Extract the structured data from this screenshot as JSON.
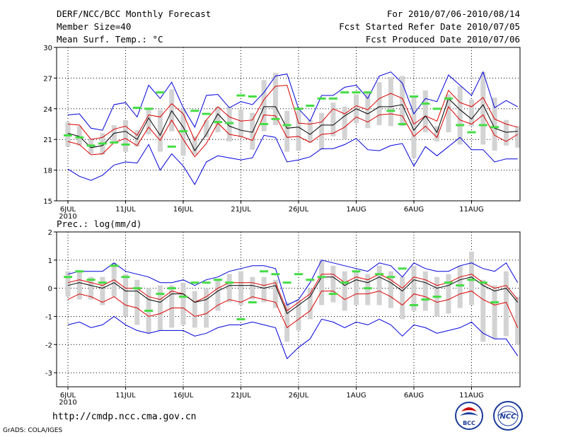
{
  "header": {
    "title": "DERF/NCC/BCC Monthly Forecast",
    "member_size": "Member Size=40",
    "variable": "Mean Surf. Temp.: °C",
    "forecast_period": "For 2010/07/06-2010/08/14",
    "started_date": "Fcst Started Refer Date 2010/07/05",
    "produced_date": "Fcst Produced Date 2010/07/06"
  },
  "footer": {
    "url": "http://cmdp.ncc.cma.gov.cn",
    "grads": "GrADS: COLA/IGES",
    "logo_bcc_text": "BCC",
    "logo_ncc_text": "NCC"
  },
  "colors": {
    "spread_bar": "#d3d3d3",
    "ensemble_max_min": "#0000dd",
    "std_band": "#dd0000",
    "ensemble_mean": "#000000",
    "observed_marker": "#44dd44",
    "grid": "#000000"
  },
  "chart_data": [
    {
      "type": "line",
      "title": "Mean Surf. Temp.: °C",
      "x_tick_labels": [
        "6JUL",
        "11JUL",
        "16JUL",
        "21JUL",
        "26JUL",
        "1AUG",
        "6AUG",
        "11AUG"
      ],
      "x_tick_sublabel": "2010",
      "y_ticks": [
        15,
        18,
        21,
        24,
        27,
        30
      ],
      "ylim": [
        15,
        30
      ],
      "days": 40,
      "series": [
        {
          "name": "ensemble max",
          "values": [
            23.4,
            23.5,
            22.1,
            21.9,
            24.4,
            24.6,
            23.2,
            26.3,
            25.0,
            26.6,
            24.1,
            22.2,
            25.3,
            25.4,
            24.1,
            24.7,
            24.4,
            25.6,
            27.2,
            27.4,
            24.0,
            22.8,
            25.3,
            25.3,
            26.1,
            26.3,
            25.0,
            27.2,
            27.6,
            26.5,
            23.5,
            25.0,
            24.7,
            27.3,
            26.3,
            25.3,
            27.6,
            24.1,
            24.8,
            24.2
          ]
        },
        {
          "name": "std upper",
          "values": [
            22.5,
            22.4,
            21.0,
            21.2,
            22.0,
            22.3,
            21.4,
            23.4,
            23.2,
            24.5,
            23.5,
            20.9,
            22.9,
            24.2,
            23.2,
            22.8,
            22.9,
            24.9,
            26.2,
            26.3,
            22.6,
            22.5,
            22.7,
            24.0,
            23.5,
            24.3,
            23.9,
            25.0,
            25.5,
            25.0,
            22.5,
            23.3,
            22.8,
            25.8,
            24.6,
            24.2,
            25.1,
            23.0,
            22.5,
            22.2
          ]
        },
        {
          "name": "ensemble mean",
          "values": [
            21.6,
            21.3,
            20.2,
            20.4,
            21.6,
            21.8,
            21.0,
            23.1,
            21.4,
            23.8,
            22.2,
            19.9,
            21.5,
            23.5,
            22.3,
            21.9,
            21.7,
            24.2,
            24.2,
            22.1,
            22.2,
            21.5,
            22.4,
            22.4,
            23.3,
            24.0,
            23.5,
            24.2,
            24.2,
            24.4,
            21.9,
            23.3,
            21.7,
            25.0,
            23.9,
            23.0,
            24.4,
            22.1,
            21.7,
            21.8
          ]
        },
        {
          "name": "std lower",
          "values": [
            20.8,
            20.5,
            19.5,
            19.6,
            20.7,
            21.1,
            20.4,
            22.2,
            20.9,
            22.9,
            21.0,
            19.3,
            20.6,
            22.6,
            21.5,
            21.3,
            20.9,
            23.4,
            23.3,
            21.2,
            21.3,
            20.7,
            21.5,
            21.6,
            22.2,
            23.2,
            22.7,
            23.4,
            23.5,
            23.3,
            21.3,
            22.3,
            21.2,
            24.2,
            22.9,
            22.5,
            23.4,
            21.4,
            20.8,
            21.5
          ]
        },
        {
          "name": "ensemble min",
          "values": [
            18.1,
            17.4,
            17.0,
            17.5,
            18.5,
            18.8,
            18.7,
            20.5,
            18.0,
            19.6,
            18.4,
            16.6,
            18.8,
            19.4,
            19.2,
            19.0,
            19.2,
            21.4,
            21.2,
            18.8,
            19.0,
            19.3,
            20.1,
            20.1,
            20.5,
            21.1,
            20.0,
            19.9,
            20.4,
            20.6,
            18.4,
            20.3,
            19.4,
            20.3,
            21.2,
            20.0,
            20.0,
            18.8,
            19.1,
            19.1
          ]
        },
        {
          "name": "spread bar top",
          "values": [
            22.7,
            22.3,
            21.1,
            21.6,
            22.4,
            22.9,
            21.9,
            24.0,
            23.9,
            25.9,
            24.0,
            21.3,
            22.9,
            24.2,
            24.2,
            23.9,
            23.6,
            26.8,
            27.5,
            23.8,
            23.8,
            22.9,
            23.6,
            24.6,
            24.2,
            25.4,
            25.5,
            26.6,
            27.1,
            27.2,
            25.2,
            25.8,
            22.3,
            25.4,
            26.2,
            24.9,
            27.6,
            25.1,
            22.9,
            22.3
          ]
        },
        {
          "name": "spread bar bottom",
          "values": [
            20.3,
            20.4,
            19.6,
            19.5,
            20.7,
            19.8,
            20.3,
            21.5,
            19.8,
            21.8,
            19.4,
            19.5,
            21.2,
            21.7,
            20.8,
            21.2,
            20.0,
            21.8,
            22.4,
            19.8,
            19.9,
            20.7,
            20.0,
            21.3,
            21.0,
            22.6,
            22.1,
            22.4,
            22.3,
            22.3,
            19.2,
            21.7,
            20.8,
            21.7,
            20.5,
            22.3,
            20.5,
            19.9,
            20.4,
            20.2
          ]
        },
        {
          "name": "observed",
          "values": [
            21.4,
            21.2,
            20.4,
            20.6,
            20.7,
            20.5,
            24.1,
            24.0,
            25.6,
            20.3,
            21.8,
            23.8,
            23.5,
            22.7,
            22.6,
            25.3,
            25.2,
            22.5,
            23.0,
            22.4,
            24.0,
            24.3,
            25.0,
            25.0,
            25.6,
            25.6,
            25.6,
            null,
            23.8,
            22.5,
            25.2,
            24.5,
            24.0,
            25.0,
            22.4,
            21.7,
            22.4,
            22.2,
            null,
            null
          ]
        }
      ]
    },
    {
      "type": "line",
      "title": "Prec.: log(mm/d)",
      "x_tick_labels": [
        "6JUL",
        "11JUL",
        "16JUL",
        "21JUL",
        "26JUL",
        "1AUG",
        "6AUG",
        "11AUG"
      ],
      "x_tick_sublabel": "2010",
      "y_ticks": [
        -3,
        -2,
        -1,
        0,
        1,
        2
      ],
      "ylim": [
        -3.5,
        2
      ],
      "days": 40,
      "series": [
        {
          "name": "ensemble max",
          "values": [
            0.5,
            0.6,
            0.6,
            0.6,
            0.9,
            0.6,
            0.5,
            0.4,
            0.2,
            0.2,
            0.3,
            0.1,
            0.3,
            0.4,
            0.6,
            0.7,
            0.8,
            0.8,
            0.7,
            -0.6,
            -0.4,
            0.2,
            1.0,
            0.9,
            0.8,
            0.7,
            0.6,
            0.9,
            0.8,
            0.4,
            0.9,
            0.7,
            0.6,
            0.6,
            0.8,
            0.9,
            0.7,
            0.6,
            0.9,
            0.2
          ]
        },
        {
          "name": "std upper",
          "values": [
            0.2,
            0.3,
            0.2,
            0.1,
            0.3,
            0.0,
            0.0,
            -0.3,
            -0.4,
            -0.1,
            -0.2,
            -0.5,
            -0.3,
            0.0,
            0.2,
            0.2,
            0.2,
            0.1,
            0.2,
            -0.8,
            -0.5,
            -0.2,
            0.5,
            0.5,
            0.2,
            0.4,
            0.3,
            0.5,
            0.3,
            0.0,
            0.4,
            0.3,
            0.1,
            0.2,
            0.4,
            0.5,
            0.2,
            0.0,
            0.1,
            -0.4
          ]
        },
        {
          "name": "ensemble mean",
          "values": [
            0.1,
            0.2,
            0.1,
            0.0,
            0.2,
            -0.1,
            -0.1,
            -0.4,
            -0.5,
            -0.2,
            -0.2,
            -0.5,
            -0.4,
            -0.1,
            0.1,
            0.1,
            0.1,
            0.0,
            0.1,
            -0.9,
            -0.6,
            -0.3,
            0.4,
            0.4,
            0.1,
            0.3,
            0.2,
            0.4,
            0.2,
            -0.1,
            0.3,
            0.2,
            0.0,
            0.1,
            0.3,
            0.4,
            0.1,
            -0.1,
            0.0,
            -0.5
          ]
        },
        {
          "name": "std lower",
          "values": [
            -0.4,
            -0.2,
            -0.3,
            -0.5,
            -0.3,
            -0.6,
            -0.7,
            -1.0,
            -0.9,
            -0.7,
            -0.7,
            -1.0,
            -0.9,
            -0.6,
            -0.4,
            -0.5,
            -0.3,
            -0.4,
            -0.5,
            -1.4,
            -1.1,
            -0.8,
            -0.1,
            -0.1,
            -0.4,
            -0.2,
            -0.2,
            -0.1,
            -0.3,
            -0.6,
            -0.2,
            -0.3,
            -0.5,
            -0.4,
            -0.2,
            -0.1,
            -0.4,
            -0.6,
            -0.5,
            -1.4
          ]
        },
        {
          "name": "ensemble min",
          "values": [
            -1.3,
            -1.2,
            -1.4,
            -1.3,
            -1.0,
            -1.3,
            -1.5,
            -1.6,
            -1.5,
            -1.5,
            -1.5,
            -1.7,
            -1.6,
            -1.4,
            -1.3,
            -1.3,
            -1.2,
            -1.3,
            -1.4,
            -2.5,
            -2.1,
            -1.8,
            -1.1,
            -1.2,
            -1.4,
            -1.2,
            -1.3,
            -1.1,
            -1.3,
            -1.7,
            -1.3,
            -1.4,
            -1.6,
            -1.5,
            -1.4,
            -1.2,
            -1.6,
            -1.8,
            -1.8,
            -2.4
          ]
        },
        {
          "name": "spread bar top",
          "values": [
            0.6,
            0.6,
            0.4,
            0.4,
            0.9,
            0.5,
            0.3,
            0.0,
            0.1,
            0.1,
            0.2,
            -0.1,
            0.0,
            0.3,
            0.5,
            0.6,
            0.4,
            0.4,
            0.3,
            -0.5,
            -0.4,
            0.0,
            1.0,
            0.8,
            0.6,
            0.6,
            0.5,
            0.8,
            0.6,
            0.4,
            0.8,
            0.6,
            0.4,
            0.5,
            0.8,
            1.3,
            0.3,
            0.1,
            0.6,
            -0.3
          ]
        },
        {
          "name": "spread bar bottom",
          "values": [
            -0.3,
            -0.4,
            -0.4,
            -0.6,
            -0.3,
            -1.0,
            -1.3,
            -1.6,
            -1.5,
            -1.4,
            -1.3,
            -1.4,
            -1.4,
            -0.8,
            -0.5,
            -0.6,
            -0.4,
            -0.5,
            -0.7,
            -1.9,
            -1.5,
            -1.1,
            -0.6,
            -0.5,
            -0.8,
            -0.6,
            -0.6,
            -0.6,
            -0.7,
            -1.1,
            -0.8,
            -0.8,
            -1.0,
            -0.9,
            -0.7,
            -0.6,
            -1.9,
            -1.8,
            -1.7,
            -2.0
          ]
        },
        {
          "name": "observed",
          "values": [
            0.4,
            0.6,
            0.3,
            0.2,
            0.8,
            0.4,
            0.0,
            -0.8,
            -0.2,
            0.0,
            -0.3,
            0.2,
            0.2,
            0.3,
            0.2,
            -1.1,
            -0.5,
            0.6,
            0.5,
            0.2,
            0.5,
            0.3,
            0.4,
            -0.2,
            0.2,
            0.6,
            0.0,
            0.5,
            0.4,
            0.7,
            -0.6,
            -0.4,
            -0.3,
            0.2,
            0.1,
            0.3,
            0.2,
            -0.5,
            null,
            null
          ]
        }
      ]
    }
  ]
}
